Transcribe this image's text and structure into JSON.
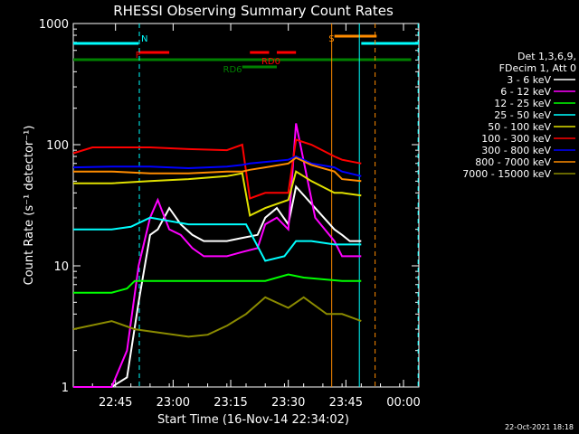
{
  "chart_data": {
    "type": "line",
    "title": "RHESSI Observing Summary Count Rates",
    "xlabel": "Start Time (16-Nov-14 22:34:02)",
    "ylabel": "Count Rate (s⁻¹ detector⁻¹)",
    "yscale": "log",
    "ylim": [
      1,
      1000
    ],
    "xlim_minutes": [
      0,
      90
    ],
    "x_ticks": [
      "22:45",
      "23:00",
      "23:15",
      "23:30",
      "23:45",
      "00:00"
    ],
    "y_ticks": [
      "1",
      "10",
      "100",
      "1000"
    ],
    "footer": "22-Oct-2021 18:18",
    "legend": {
      "header": [
        "Det 1,3,6,9,",
        "FDecim 1, Att 0"
      ],
      "items": [
        {
          "label": "3 - 6 keV",
          "color": "#ffffff"
        },
        {
          "label": "6 - 12 keV",
          "color": "#ff00ff"
        },
        {
          "label": "12 - 25 keV",
          "color": "#00ff00"
        },
        {
          "label": "25 - 50 keV",
          "color": "#00ffff"
        },
        {
          "label": "50 - 100 keV",
          "color": "#e0e000"
        },
        {
          "label": "100 - 300 keV",
          "color": "#ff0000"
        },
        {
          "label": "300 - 800 keV",
          "color": "#0000ff"
        },
        {
          "label": "800 - 7000 keV",
          "color": "#ff8c00"
        },
        {
          "label": "7000 - 15000 keV",
          "color": "#8b8b00"
        }
      ]
    },
    "flags": [
      {
        "label": "N",
        "color": "#00ffff"
      },
      {
        "label": "F",
        "color": "#ff0000"
      },
      {
        "label": "RD0",
        "color": "#ff0000"
      },
      {
        "label": "RD6",
        "color": "#008000"
      },
      {
        "label": "S",
        "color": "#ff8c00"
      }
    ],
    "series": [
      {
        "name": "3 - 6 keV",
        "color": "#ffffff",
        "x": [
          0,
          10,
          14,
          17,
          20,
          22,
          25,
          28,
          31,
          34,
          37,
          40,
          44,
          48,
          50,
          53,
          56,
          58,
          63,
          68,
          70,
          72,
          75
        ],
        "y": [
          1,
          1,
          1.2,
          5,
          18,
          20,
          30,
          22,
          18,
          16,
          16,
          16,
          17,
          18,
          25,
          30,
          22,
          45,
          30,
          20,
          18,
          16,
          16
        ]
      },
      {
        "name": "6 - 12 keV",
        "color": "#ff00ff",
        "x": [
          0,
          10,
          14,
          17,
          20,
          22,
          25,
          28,
          31,
          34,
          37,
          40,
          44,
          48,
          50,
          53,
          56,
          58,
          63,
          68,
          70,
          72,
          75
        ],
        "y": [
          1,
          1,
          2,
          10,
          25,
          35,
          20,
          18,
          14,
          12,
          12,
          12,
          13,
          14,
          22,
          25,
          20,
          150,
          25,
          16,
          12,
          12,
          12
        ]
      },
      {
        "name": "12 - 25 keV",
        "color": "#00ff00",
        "x": [
          0,
          10,
          14,
          16,
          30,
          45,
          50,
          56,
          60,
          70,
          75
        ],
        "y": [
          6,
          6,
          6.5,
          7.5,
          7.5,
          7.5,
          7.5,
          8.5,
          8,
          7.5,
          7.5
        ]
      },
      {
        "name": "25 - 50 keV",
        "color": "#00ffff",
        "x": [
          0,
          10,
          15,
          20,
          30,
          40,
          45,
          50,
          55,
          58,
          62,
          68,
          70,
          75
        ],
        "y": [
          20,
          20,
          21,
          25,
          22,
          22,
          22,
          11,
          12,
          16,
          16,
          15,
          15,
          15
        ]
      },
      {
        "name": "50 - 100 keV",
        "color": "#e0e000",
        "x": [
          0,
          10,
          20,
          30,
          40,
          44,
          46,
          50,
          56,
          58,
          62,
          68,
          70,
          75
        ],
        "y": [
          48,
          48,
          50,
          52,
          55,
          58,
          26,
          30,
          35,
          60,
          50,
          40,
          40,
          38
        ]
      },
      {
        "name": "100 - 300 keV",
        "color": "#ff0000",
        "x": [
          0,
          5,
          10,
          20,
          30,
          40,
          44,
          46,
          50,
          56,
          58,
          62,
          68,
          70,
          75
        ],
        "y": [
          85,
          95,
          95,
          95,
          92,
          90,
          100,
          36,
          40,
          40,
          110,
          100,
          80,
          75,
          70
        ]
      },
      {
        "name": "300 - 800 keV",
        "color": "#0000ff",
        "x": [
          0,
          10,
          20,
          30,
          40,
          44,
          46,
          50,
          56,
          58,
          62,
          68,
          70,
          75
        ],
        "y": [
          65,
          66,
          66,
          64,
          66,
          68,
          70,
          72,
          75,
          80,
          70,
          65,
          60,
          55
        ]
      },
      {
        "name": "800 - 7000 keV",
        "color": "#ff8c00",
        "x": [
          0,
          10,
          20,
          30,
          40,
          44,
          46,
          50,
          56,
          58,
          62,
          68,
          70,
          75
        ],
        "y": [
          60,
          60,
          58,
          58,
          60,
          60,
          62,
          65,
          70,
          78,
          68,
          60,
          52,
          50
        ]
      },
      {
        "name": "7000 - 15000 keV",
        "color": "#8b8b00",
        "x": [
          0,
          10,
          16,
          30,
          35,
          40,
          45,
          50,
          56,
          60,
          66,
          70,
          75
        ],
        "y": [
          3,
          3.5,
          3,
          2.6,
          2.7,
          3.2,
          4,
          5.5,
          4.5,
          5.5,
          4,
          4,
          3.5
        ]
      }
    ]
  }
}
